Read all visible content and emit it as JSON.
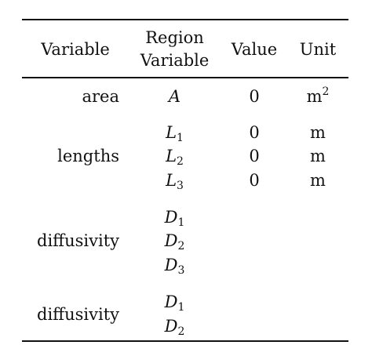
{
  "header": {
    "variable": "Variable",
    "region_line1": "Region",
    "region_line2": "Variable",
    "value": "Value",
    "unit": "Unit"
  },
  "rows": {
    "area": {
      "label": "area",
      "region_var": "A",
      "value": "0",
      "unit_base": "m",
      "unit_exp": "2"
    },
    "lengths": {
      "label": "lengths",
      "items": [
        {
          "base": "L",
          "sub": "1",
          "value": "0",
          "unit": "m"
        },
        {
          "base": "L",
          "sub": "2",
          "value": "0",
          "unit": "m"
        },
        {
          "base": "L",
          "sub": "3",
          "value": "0",
          "unit": "m"
        }
      ]
    },
    "diffusivity_a": {
      "label": "diffusivity",
      "items": [
        {
          "base": "D",
          "sub": "1"
        },
        {
          "base": "D",
          "sub": "2"
        },
        {
          "base": "D",
          "sub": "3"
        }
      ]
    },
    "diffusivity_b": {
      "label": "diffusivity",
      "items": [
        {
          "base": "D",
          "sub": "1"
        },
        {
          "base": "D",
          "sub": "2"
        }
      ]
    }
  }
}
